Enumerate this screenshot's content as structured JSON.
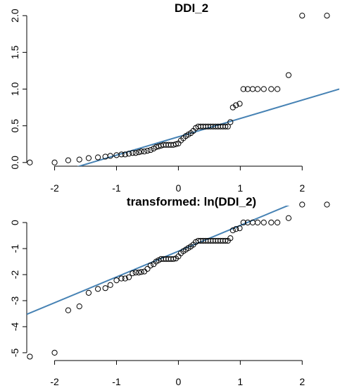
{
  "chart_data": [
    {
      "type": "scatter",
      "title": "DDI_2",
      "xlabel": "",
      "ylabel": "",
      "xlim": [
        -2.45,
        2.6
      ],
      "ylim": [
        -0.05,
        2.05
      ],
      "x_ticks": [
        -2,
        -1,
        0,
        1,
        2
      ],
      "y_ticks": [
        0.0,
        0.5,
        1.0,
        1.5,
        2.0
      ],
      "x_tick_labels": [
        "-2",
        "-1",
        "0",
        "1",
        "2"
      ],
      "y_tick_labels": [
        "0.0",
        "0.5",
        "1.0",
        "1.5",
        "2.0"
      ],
      "reference_line": {
        "intercept": 0.35,
        "slope": 0.25,
        "color": "#4682B4"
      },
      "points": [
        [
          -2.4,
          0.0
        ],
        [
          -2.0,
          0.0
        ],
        [
          -1.78,
          0.03
        ],
        [
          -1.6,
          0.04
        ],
        [
          -1.45,
          0.06
        ],
        [
          -1.3,
          0.07
        ],
        [
          -1.18,
          0.08
        ],
        [
          -1.1,
          0.09
        ],
        [
          -1.0,
          0.1
        ],
        [
          -0.92,
          0.11
        ],
        [
          -0.86,
          0.11
        ],
        [
          -0.8,
          0.12
        ],
        [
          -0.74,
          0.13
        ],
        [
          -0.69,
          0.13
        ],
        [
          -0.64,
          0.14
        ],
        [
          -0.6,
          0.15
        ],
        [
          -0.55,
          0.15
        ],
        [
          -0.5,
          0.16
        ],
        [
          -0.45,
          0.17
        ],
        [
          -0.4,
          0.19
        ],
        [
          -0.36,
          0.21
        ],
        [
          -0.32,
          0.22
        ],
        [
          -0.28,
          0.23
        ],
        [
          -0.24,
          0.24
        ],
        [
          -0.2,
          0.24
        ],
        [
          -0.16,
          0.24
        ],
        [
          -0.12,
          0.24
        ],
        [
          -0.08,
          0.24
        ],
        [
          -0.04,
          0.25
        ],
        [
          0.0,
          0.26
        ],
        [
          0.04,
          0.3
        ],
        [
          0.08,
          0.33
        ],
        [
          0.12,
          0.36
        ],
        [
          0.16,
          0.38
        ],
        [
          0.2,
          0.4
        ],
        [
          0.24,
          0.43
        ],
        [
          0.28,
          0.47
        ],
        [
          0.32,
          0.49
        ],
        [
          0.36,
          0.49
        ],
        [
          0.4,
          0.49
        ],
        [
          0.44,
          0.49
        ],
        [
          0.48,
          0.49
        ],
        [
          0.52,
          0.49
        ],
        [
          0.56,
          0.49
        ],
        [
          0.6,
          0.49
        ],
        [
          0.64,
          0.49
        ],
        [
          0.68,
          0.49
        ],
        [
          0.72,
          0.49
        ],
        [
          0.76,
          0.49
        ],
        [
          0.8,
          0.49
        ],
        [
          0.84,
          0.55
        ],
        [
          0.88,
          0.75
        ],
        [
          0.93,
          0.78
        ],
        [
          0.99,
          0.8
        ],
        [
          1.05,
          1.0
        ],
        [
          1.12,
          1.0
        ],
        [
          1.2,
          1.0
        ],
        [
          1.28,
          1.0
        ],
        [
          1.38,
          1.0
        ],
        [
          1.5,
          1.0
        ],
        [
          1.6,
          1.0
        ],
        [
          1.78,
          1.19
        ],
        [
          2.0,
          2.0
        ],
        [
          2.4,
          2.0
        ]
      ]
    },
    {
      "type": "scatter",
      "title": "transformed: ln(DDI_2)",
      "xlabel": "",
      "ylabel": "",
      "xlim": [
        -2.45,
        2.6
      ],
      "ylim": [
        -5.3,
        0.65
      ],
      "x_ticks": [
        -2,
        -1,
        0,
        1,
        2
      ],
      "y_ticks": [
        0,
        -1,
        -2,
        -3,
        -4,
        -5
      ],
      "x_tick_labels": [
        "-2",
        "-1",
        "0",
        "1",
        "2"
      ],
      "y_tick_labels": [
        "0",
        "-1",
        "-2",
        "-3",
        "-4",
        "-5"
      ],
      "reference_line": {
        "intercept": -1.1,
        "slope": 0.99,
        "color": "#4682B4"
      },
      "points": [
        [
          -2.4,
          -5.15
        ],
        [
          -2.0,
          -5.0
        ],
        [
          -1.78,
          -3.37
        ],
        [
          -1.6,
          -3.22
        ],
        [
          -1.45,
          -2.7
        ],
        [
          -1.3,
          -2.55
        ],
        [
          -1.18,
          -2.52
        ],
        [
          -1.1,
          -2.4
        ],
        [
          -1.0,
          -2.22
        ],
        [
          -0.92,
          -2.15
        ],
        [
          -0.86,
          -2.15
        ],
        [
          -0.8,
          -2.1
        ],
        [
          -0.74,
          -1.95
        ],
        [
          -0.69,
          -1.92
        ],
        [
          -0.64,
          -1.92
        ],
        [
          -0.6,
          -1.9
        ],
        [
          -0.55,
          -1.88
        ],
        [
          -0.5,
          -1.78
        ],
        [
          -0.45,
          -1.65
        ],
        [
          -0.4,
          -1.6
        ],
        [
          -0.36,
          -1.5
        ],
        [
          -0.32,
          -1.45
        ],
        [
          -0.28,
          -1.4
        ],
        [
          -0.24,
          -1.4
        ],
        [
          -0.2,
          -1.4
        ],
        [
          -0.16,
          -1.4
        ],
        [
          -0.12,
          -1.4
        ],
        [
          -0.08,
          -1.4
        ],
        [
          -0.04,
          -1.38
        ],
        [
          0.0,
          -1.3
        ],
        [
          0.04,
          -1.18
        ],
        [
          0.08,
          -1.1
        ],
        [
          0.12,
          -1.04
        ],
        [
          0.16,
          -0.98
        ],
        [
          0.2,
          -0.92
        ],
        [
          0.24,
          -0.85
        ],
        [
          0.28,
          -0.75
        ],
        [
          0.32,
          -0.7
        ],
        [
          0.36,
          -0.7
        ],
        [
          0.4,
          -0.7
        ],
        [
          0.44,
          -0.7
        ],
        [
          0.48,
          -0.7
        ],
        [
          0.52,
          -0.7
        ],
        [
          0.56,
          -0.7
        ],
        [
          0.6,
          -0.7
        ],
        [
          0.64,
          -0.7
        ],
        [
          0.68,
          -0.7
        ],
        [
          0.72,
          -0.7
        ],
        [
          0.76,
          -0.7
        ],
        [
          0.8,
          -0.7
        ],
        [
          0.84,
          -0.6
        ],
        [
          0.88,
          -0.3
        ],
        [
          0.93,
          -0.25
        ],
        [
          0.99,
          -0.22
        ],
        [
          1.05,
          0.0
        ],
        [
          1.12,
          0.0
        ],
        [
          1.2,
          0.0
        ],
        [
          1.28,
          0.0
        ],
        [
          1.38,
          0.0
        ],
        [
          1.5,
          0.0
        ],
        [
          1.6,
          0.0
        ],
        [
          1.78,
          0.17
        ],
        [
          2.0,
          0.69
        ],
        [
          2.4,
          0.69
        ]
      ]
    }
  ]
}
